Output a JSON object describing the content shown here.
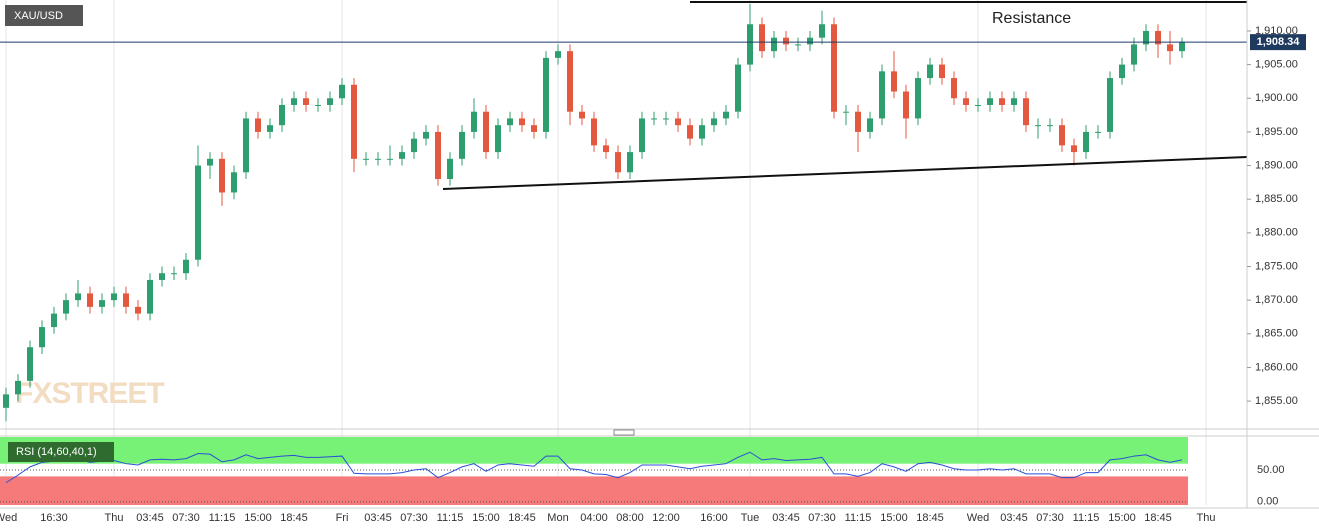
{
  "chart_data": [
    {
      "type": "candlestick",
      "title": "XAU/USD",
      "annotation": "Resistance",
      "watermark": "FXSTREET",
      "categories": [
        "Wed",
        null,
        null,
        null,
        "16:30",
        null,
        null,
        null,
        null,
        "Thu",
        null,
        null,
        "03:45",
        null,
        null,
        "07:30",
        null,
        null,
        "11:15",
        null,
        null,
        "15:00",
        null,
        null,
        "18:45",
        null,
        null,
        null,
        "Fri",
        null,
        null,
        "03:45",
        null,
        null,
        "07:30",
        null,
        null,
        "11:15",
        null,
        null,
        "15:00",
        null,
        null,
        "18:45",
        null,
        null,
        "Mon",
        null,
        null,
        "04:00",
        null,
        null,
        "08:00",
        null,
        null,
        "12:00",
        null,
        null,
        null,
        "16:00",
        null,
        null,
        "Tue",
        null,
        null,
        "03:45",
        null,
        null,
        "07:30",
        null,
        null,
        "11:15",
        null,
        null,
        "15:00",
        null,
        null,
        "18:45",
        null,
        null,
        null,
        "Wed",
        null,
        null,
        "03:45",
        null,
        null,
        "07:30",
        null,
        null,
        "11:15",
        null,
        null,
        "15:00",
        null,
        null,
        "18:45",
        null,
        null,
        null,
        "Thu"
      ],
      "open": [
        1854,
        1856,
        1858,
        1863,
        1866,
        1868,
        1870,
        1871,
        1869,
        1870,
        1871,
        1869,
        1868,
        1873,
        1874,
        1874,
        1876,
        1890,
        1891,
        1886,
        1889,
        1897,
        1895,
        1896,
        1899,
        1900,
        1899,
        1899,
        1900,
        1902,
        1891,
        1891,
        1891,
        1891,
        1892,
        1894,
        1895,
        1888,
        1891,
        1895,
        1898,
        1892,
        1896,
        1897,
        1896,
        1895,
        1906,
        1907,
        1898,
        1897,
        1893,
        1892,
        1889,
        1892,
        1897,
        1897,
        1897,
        1896,
        1894,
        1896,
        1897,
        1898,
        1905,
        1911,
        1907,
        1909,
        1908,
        1908,
        1909,
        1911,
        1898,
        1898,
        1895,
        1897,
        1904,
        1901,
        1897,
        1903,
        1905,
        1903,
        1900,
        1899,
        1899,
        1900,
        1899,
        1900,
        1896,
        1896,
        1896,
        1893,
        1892,
        1895,
        1895,
        1903,
        1905,
        1908,
        1910,
        1908,
        1907,
        null,
        null
      ],
      "high": [
        1857,
        1859,
        1864,
        1867,
        1869,
        1871,
        1873,
        1872,
        1871,
        1872,
        1872,
        1870,
        1874,
        1875,
        1875,
        1877,
        1893,
        1892,
        1892,
        1890,
        1898,
        1898,
        1897,
        1900,
        1901,
        1901,
        1900,
        1901,
        1903,
        1903,
        1892,
        1892,
        1893,
        1893,
        1895,
        1896,
        1896,
        1892,
        1896,
        1900,
        1899,
        1897,
        1898,
        1898,
        1897,
        1907,
        1908,
        1908,
        1899,
        1898,
        1894,
        1893,
        1893,
        1898,
        1898,
        1898,
        1898,
        1897,
        1897,
        1898,
        1899,
        1906,
        1914,
        1912,
        1910,
        1910,
        1909,
        1910,
        1913,
        1912,
        1899,
        1899,
        1898,
        1905,
        1907,
        1902,
        1904,
        1906,
        1906,
        1904,
        1901,
        1900,
        1901,
        1901,
        1901,
        1901,
        1897,
        1897,
        1897,
        1894,
        1896,
        1896,
        1904,
        1906,
        1909,
        1911,
        1911,
        1910,
        1909,
        null,
        null
      ],
      "low": [
        1852,
        1855,
        1857,
        1862,
        1865,
        1867,
        1869,
        1868,
        1868,
        1869,
        1868,
        1867,
        1867,
        1872,
        1873,
        1873,
        1875,
        1888,
        1884,
        1885,
        1888,
        1894,
        1894,
        1895,
        1898,
        1898,
        1898,
        1898,
        1899,
        1889,
        1890,
        1890,
        1890,
        1890,
        1891,
        1893,
        1887,
        1887,
        1890,
        1894,
        1891,
        1891,
        1895,
        1895,
        1894,
        1894,
        1905,
        1896,
        1896,
        1892,
        1891,
        1888,
        1888,
        1891,
        1896,
        1896,
        1895,
        1893,
        1893,
        1895,
        1896,
        1897,
        1904,
        1906,
        1906,
        1907,
        1907,
        1907,
        1908,
        1897,
        1896,
        1892,
        1894,
        1896,
        1900,
        1894,
        1896,
        1902,
        1902,
        1899,
        1898,
        1898,
        1898,
        1898,
        1898,
        1895,
        1894,
        1895,
        1892,
        1890,
        1891,
        1894,
        1894,
        1902,
        1904,
        1907,
        1906,
        1905,
        1906,
        null,
        null
      ],
      "close": [
        1856,
        1858,
        1863,
        1866,
        1868,
        1870,
        1871,
        1869,
        1870,
        1871,
        1869,
        1868,
        1873,
        1874,
        1874,
        1876,
        1890,
        1891,
        1886,
        1889,
        1897,
        1895,
        1896,
        1899,
        1900,
        1899,
        1899,
        1900,
        1902,
        1891,
        1891,
        1891,
        1891,
        1892,
        1894,
        1895,
        1888,
        1891,
        1895,
        1898,
        1892,
        1896,
        1897,
        1896,
        1895,
        1906,
        1907,
        1898,
        1897,
        1893,
        1892,
        1889,
        1892,
        1897,
        1897,
        1897,
        1896,
        1894,
        1896,
        1897,
        1898,
        1905,
        1911,
        1907,
        1909,
        1908,
        1908,
        1909,
        1911,
        1898,
        1898,
        1895,
        1897,
        1904,
        1901,
        1897,
        1903,
        1905,
        1903,
        1900,
        1899,
        1899,
        1900,
        1899,
        1900,
        1896,
        1896,
        1896,
        1893,
        1892,
        1895,
        1895,
        1903,
        1905,
        1908,
        1910,
        1908,
        1907,
        1908.34,
        null,
        null
      ],
      "up_color": "#2e9e6e",
      "down_color": "#e3583f",
      "ylim": [
        1851,
        1914.6
      ],
      "yticks": [
        {
          "value": 1855,
          "label": "1,855.00"
        },
        {
          "value": 1860,
          "label": "1,860.00"
        },
        {
          "value": 1865,
          "label": "1,865.00"
        },
        {
          "value": 1870,
          "label": "1,870.00"
        },
        {
          "value": 1875,
          "label": "1,875.00"
        },
        {
          "value": 1880,
          "label": "1,880.00"
        },
        {
          "value": 1885,
          "label": "1,885.00"
        },
        {
          "value": 1890,
          "label": "1,890.00"
        },
        {
          "value": 1895,
          "label": "1,895.00"
        },
        {
          "value": 1900,
          "label": "1,900.00"
        },
        {
          "value": 1905,
          "label": "1,905.00"
        },
        {
          "value": 1910,
          "label": "1,910.00"
        }
      ],
      "last_price": {
        "value": 1908.34,
        "label": "1,908.34"
      }
    },
    {
      "type": "line",
      "title": "RSI (14,60,40,1)",
      "color": "#2a4fd6",
      "values": [
        30,
        42,
        55,
        62,
        64,
        66,
        67,
        62,
        64,
        65,
        60,
        58,
        66,
        67,
        66,
        68,
        76,
        75,
        63,
        66,
        74,
        68,
        70,
        72,
        73,
        70,
        70,
        71,
        72,
        45,
        44,
        44,
        44,
        46,
        50,
        52,
        38,
        46,
        55,
        60,
        48,
        58,
        60,
        58,
        56,
        72,
        72,
        52,
        50,
        44,
        43,
        38,
        46,
        58,
        58,
        58,
        55,
        52,
        56,
        58,
        60,
        70,
        78,
        66,
        68,
        65,
        66,
        67,
        70,
        44,
        44,
        40,
        46,
        60,
        55,
        48,
        60,
        62,
        58,
        52,
        50,
        50,
        52,
        50,
        52,
        44,
        44,
        44,
        38,
        38,
        46,
        46,
        66,
        68,
        72,
        74,
        66,
        62,
        66,
        null,
        null
      ],
      "upper_band": 60,
      "lower_band": 40,
      "upper_color": "#77f277",
      "lower_color": "#f77a7a",
      "ylim": [
        -5,
        102
      ],
      "yticks": [
        {
          "value": 50,
          "label": "50.00"
        },
        {
          "value": 0,
          "label": "0.00"
        }
      ]
    }
  ]
}
